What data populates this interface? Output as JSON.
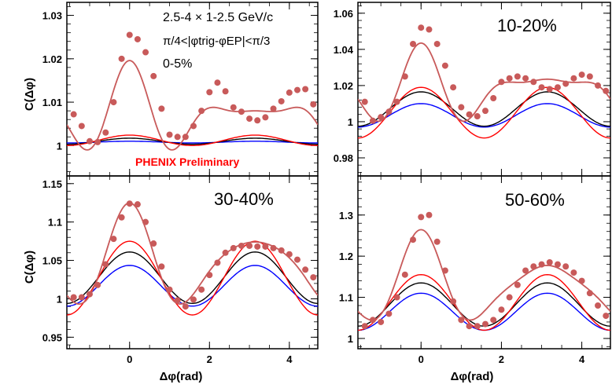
{
  "figure": {
    "ylabel": "C(Δφ)",
    "xlabel": "Δφ(rad)",
    "watermark": "PHENIX Preliminary",
    "watermark_color": "#ff0000"
  },
  "chart_data": [
    {
      "type": "line",
      "panel": "top-left",
      "annotations": [
        "2.5-4 × 1-2.5 GeV/c",
        "π/4<|φtrig-φEP|<π/3",
        "0-5%"
      ],
      "xlim": [
        -1.5708,
        4.7124
      ],
      "ylim": [
        0.993,
        1.033
      ],
      "xticks": [
        "0",
        "2",
        "4"
      ],
      "yticks": [
        1,
        1.01,
        1.02,
        1.03
      ],
      "ytick_labels": [
        "1",
        "1.01",
        "1.02",
        "1.03"
      ],
      "series": [
        {
          "role": "data",
          "color": "#c85a5a",
          "x": [
            -1.4,
            -1.2,
            -1.0,
            -0.8,
            -0.6,
            -0.4,
            -0.2,
            0.0,
            0.2,
            0.4,
            0.6,
            0.8,
            1.0,
            1.2,
            1.4,
            1.6,
            1.8,
            2.0,
            2.2,
            2.4,
            2.6,
            2.8,
            3.0,
            3.2,
            3.4,
            3.6,
            3.8,
            4.0,
            4.2,
            4.4,
            4.6
          ],
          "y": [
            1.0072,
            1.0045,
            1.001,
            1.0008,
            1.003,
            1.01,
            1.02,
            1.0255,
            1.0245,
            1.0215,
            1.016,
            1.0085,
            1.0025,
            1.002,
            1.002,
            1.0045,
            1.008,
            1.0123,
            1.0145,
            1.0125,
            1.0088,
            1.0078,
            1.0062,
            1.0058,
            1.0065,
            1.0085,
            1.0102,
            1.0122,
            1.0128,
            1.013,
            1.0095
          ]
        },
        {
          "role": "fit",
          "color": "#c85a5a",
          "a": 1.0072,
          "terms": [
            [
              1,
              0.0006
            ],
            [
              2,
              0.0045
            ],
            [
              3,
              0.0052
            ],
            [
              4,
              0.0021
            ]
          ]
        },
        {
          "role": "flow-upper",
          "color": "#ff0000",
          "a": 1.0012,
          "terms": [
            [
              2,
              0.0012
            ]
          ]
        },
        {
          "role": "flow",
          "color": "#000000",
          "a": 1.001,
          "terms": [
            [
              2,
              0.0007
            ]
          ]
        },
        {
          "role": "flow-lower",
          "color": "#0000ff",
          "a": 1.0008,
          "terms": [
            [
              2,
              0.0002
            ]
          ]
        }
      ]
    },
    {
      "type": "line",
      "panel": "top-right",
      "annotations": [
        "10-20%"
      ],
      "xlim": [
        -1.5708,
        4.7124
      ],
      "ylim": [
        0.97,
        1.066
      ],
      "xticks": [
        "0",
        "2",
        "4"
      ],
      "yticks": [
        0.98,
        1,
        1.02,
        1.04,
        1.06
      ],
      "ytick_labels": [
        "0.98",
        "1",
        "1.02",
        "1.04",
        "1.06"
      ],
      "series": [
        {
          "role": "data",
          "color": "#c85a5a",
          "x": [
            -1.4,
            -1.2,
            -1.0,
            -0.8,
            -0.6,
            -0.4,
            -0.2,
            0.0,
            0.2,
            0.4,
            0.6,
            0.8,
            1.0,
            1.2,
            1.4,
            1.6,
            1.8,
            2.0,
            2.2,
            2.4,
            2.6,
            2.8,
            3.0,
            3.2,
            3.4,
            3.6,
            3.8,
            4.0,
            4.2,
            4.4,
            4.6
          ],
          "y": [
            1.011,
            1.0005,
            1.0025,
            1.0055,
            1.011,
            1.025,
            1.043,
            1.052,
            1.051,
            1.043,
            1.031,
            1.019,
            1.008,
            1.004,
            1.003,
            1.006,
            1.013,
            1.022,
            1.024,
            1.025,
            1.024,
            1.022,
            1.019,
            1.018,
            1.019,
            1.021,
            1.024,
            1.026,
            1.025,
            1.02,
            1.017
          ]
        },
        {
          "role": "fit",
          "color": "#c85a5a",
          "a": 1.0185,
          "terms": [
            [
              1,
              -0.0005
            ],
            [
              2,
              0.0105
            ],
            [
              3,
              0.0105
            ],
            [
              4,
              0.0045
            ]
          ]
        },
        {
          "role": "flow-upper",
          "color": "#ff0000",
          "a": 1.005,
          "terms": [
            [
              2,
              0.014
            ]
          ]
        },
        {
          "role": "flow",
          "color": "#000000",
          "a": 1.007,
          "terms": [
            [
              2,
              0.0095
            ]
          ]
        },
        {
          "role": "flow-lower",
          "color": "#0000ff",
          "a": 1.0035,
          "terms": [
            [
              2,
              0.0065
            ]
          ]
        }
      ]
    },
    {
      "type": "line",
      "panel": "bottom-left",
      "annotations": [
        "30-40%"
      ],
      "xlim": [
        -1.5708,
        4.7124
      ],
      "ylim": [
        0.935,
        1.16
      ],
      "xticks": [
        "0",
        "2",
        "4"
      ],
      "yticks": [
        0.95,
        1,
        1.05,
        1.1,
        1.15
      ],
      "ytick_labels": [
        "0.95",
        "1",
        "1.05",
        "1.1",
        "1.15"
      ],
      "series": [
        {
          "role": "data",
          "color": "#c85a5a",
          "x": [
            -1.4,
            -1.2,
            -1.0,
            -0.8,
            -0.6,
            -0.4,
            -0.2,
            0.0,
            0.2,
            0.4,
            0.6,
            0.8,
            1.0,
            1.2,
            1.4,
            1.6,
            1.8,
            2.0,
            2.2,
            2.4,
            2.6,
            2.8,
            3.0,
            3.2,
            3.4,
            3.6,
            3.8,
            4.0,
            4.2,
            4.4,
            4.6
          ],
          "y": [
            1.002,
            1.002,
            1.006,
            1.018,
            1.045,
            1.078,
            1.106,
            1.124,
            1.123,
            1.1,
            1.072,
            1.042,
            1.012,
            0.998,
            0.99,
            0.999,
            1.012,
            1.031,
            1.047,
            1.06,
            1.066,
            1.069,
            1.069,
            1.068,
            1.068,
            1.066,
            1.063,
            1.058,
            1.051,
            1.038,
            1.028
          ]
        },
        {
          "role": "fit",
          "color": "#c85a5a",
          "a": 1.0475,
          "terms": [
            [
              1,
              0.003
            ],
            [
              2,
              0.0475
            ],
            [
              3,
              0.0225
            ],
            [
              4,
              0.0045
            ]
          ]
        },
        {
          "role": "flow-upper",
          "color": "#ff0000",
          "a": 1.027,
          "terms": [
            [
              2,
              0.048
            ]
          ]
        },
        {
          "role": "flow",
          "color": "#000000",
          "a": 1.0275,
          "terms": [
            [
              2,
              0.0335
            ]
          ]
        },
        {
          "role": "flow-lower",
          "color": "#0000ff",
          "a": 1.017,
          "terms": [
            [
              2,
              0.0265
            ]
          ]
        }
      ]
    },
    {
      "type": "line",
      "panel": "bottom-right",
      "annotations": [
        "50-60%"
      ],
      "xlim": [
        -1.5708,
        4.7124
      ],
      "ylim": [
        0.975,
        1.395
      ],
      "xticks": [
        "0",
        "2",
        "4"
      ],
      "yticks": [
        1,
        1.1,
        1.2,
        1.3
      ],
      "ytick_labels": [
        "1",
        "1.1",
        "1.2",
        "1.3"
      ],
      "series": [
        {
          "role": "data",
          "color": "#c85a5a",
          "x": [
            -1.4,
            -1.2,
            -1.0,
            -0.8,
            -0.6,
            -0.4,
            -0.2,
            0.0,
            0.2,
            0.4,
            0.6,
            0.8,
            1.0,
            1.2,
            1.4,
            1.6,
            1.8,
            2.0,
            2.2,
            2.4,
            2.6,
            2.8,
            3.0,
            3.2,
            3.4,
            3.6,
            3.8,
            4.0,
            4.2,
            4.4,
            4.6
          ],
          "y": [
            1.03,
            1.045,
            1.04,
            1.06,
            1.1,
            1.155,
            1.24,
            1.295,
            1.3,
            1.235,
            1.165,
            1.09,
            1.045,
            1.03,
            1.03,
            1.035,
            1.045,
            1.07,
            1.1,
            1.13,
            1.165,
            1.175,
            1.18,
            1.185,
            1.18,
            1.175,
            1.16,
            1.14,
            1.11,
            1.08,
            1.055
          ]
        },
        {
          "role": "fit",
          "color": "#c85a5a",
          "a": 1.1305,
          "terms": [
            [
              1,
              0.0075
            ],
            [
              2,
              0.0775
            ],
            [
              3,
              0.036
            ],
            [
              4,
              0.013
            ]
          ]
        },
        {
          "role": "flow-upper",
          "color": "#ff0000",
          "a": 1.0875,
          "terms": [
            [
              2,
              0.0675
            ]
          ]
        },
        {
          "role": "flow",
          "color": "#000000",
          "a": 1.0825,
          "terms": [
            [
              2,
              0.0525
            ]
          ]
        },
        {
          "role": "flow-lower",
          "color": "#0000ff",
          "a": 1.065,
          "terms": [
            [
              2,
              0.045
            ]
          ]
        }
      ]
    }
  ]
}
